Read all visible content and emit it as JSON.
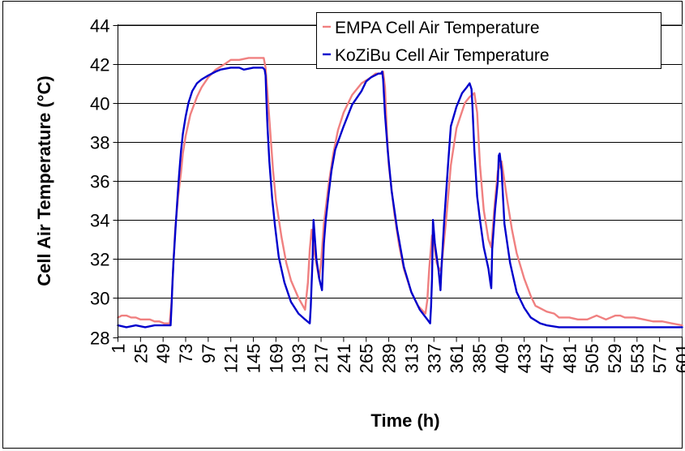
{
  "chart_data": {
    "type": "line",
    "title": "",
    "xlabel": "Time (h)",
    "ylabel": "Cell Air Temperature (°C)",
    "ylim": [
      28,
      44
    ],
    "yticks": [
      28,
      30,
      32,
      34,
      36,
      38,
      40,
      42,
      44
    ],
    "xlim": [
      1,
      601
    ],
    "xticks": [
      1,
      25,
      49,
      73,
      97,
      121,
      145,
      169,
      193,
      217,
      241,
      265,
      289,
      313,
      337,
      361,
      385,
      409,
      433,
      457,
      481,
      505,
      529,
      553,
      577,
      601
    ],
    "grid": "horizontal",
    "legend_position": "top-right",
    "series": [
      {
        "name": "EMPA Cell Air Temperature",
        "color": "#f08080",
        "x": [
          1,
          5,
          10,
          15,
          20,
          25,
          30,
          35,
          40,
          45,
          50,
          56,
          58,
          60,
          62,
          65,
          68,
          70,
          73,
          78,
          85,
          90,
          97,
          105,
          115,
          121,
          130,
          140,
          150,
          156,
          158,
          160,
          163,
          166,
          169,
          175,
          180,
          185,
          193,
          200,
          203,
          205,
          207,
          210,
          213,
          215,
          217,
          220,
          225,
          230,
          235,
          241,
          250,
          260,
          270,
          275,
          280,
          283,
          285,
          287,
          289,
          295,
          300,
          305,
          313,
          320,
          328,
          330,
          332,
          335,
          337,
          340,
          343,
          345,
          350,
          355,
          361,
          370,
          375,
          380,
          383,
          386,
          390,
          395,
          398,
          400,
          402,
          405,
          409,
          415,
          420,
          425,
          433,
          440,
          445,
          457,
          465,
          470,
          481,
          490,
          500,
          505,
          510,
          515,
          520,
          525,
          530,
          535,
          540,
          545,
          550,
          560,
          570,
          580,
          590,
          601
        ],
        "values": [
          29.0,
          29.1,
          29.1,
          29.0,
          29.0,
          28.9,
          28.9,
          28.9,
          28.8,
          28.8,
          28.7,
          28.7,
          29.8,
          31.8,
          33.6,
          35.2,
          36.4,
          37.4,
          38.3,
          39.4,
          40.3,
          40.8,
          41.3,
          41.7,
          42.0,
          42.2,
          42.2,
          42.3,
          42.3,
          42.3,
          41.8,
          40.5,
          38.5,
          36.5,
          35.0,
          33.1,
          31.8,
          30.9,
          30.0,
          29.4,
          30.8,
          32.5,
          33.5,
          32.3,
          31.5,
          31.0,
          31.8,
          33.8,
          35.8,
          37.4,
          38.6,
          39.5,
          40.4,
          41.0,
          41.3,
          41.5,
          41.5,
          41.6,
          40.8,
          38.5,
          36.8,
          34.3,
          32.7,
          31.5,
          30.3,
          29.6,
          29.2,
          29.9,
          31.5,
          33.2,
          32.8,
          31.8,
          31.4,
          31.6,
          34.0,
          36.8,
          38.7,
          40.0,
          40.3,
          40.5,
          39.5,
          36.8,
          34.5,
          33.0,
          32.6,
          33.8,
          35.0,
          36.5,
          37.0,
          35.0,
          33.5,
          32.3,
          31.0,
          30.1,
          29.6,
          29.3,
          29.2,
          29.0,
          29.0,
          28.9,
          28.9,
          29.0,
          29.1,
          29.0,
          28.9,
          29.0,
          29.1,
          29.1,
          29.0,
          29.0,
          29.0,
          28.9,
          28.8,
          28.8,
          28.7,
          28.6
        ]
      },
      {
        "name": "KoZiBu Cell Air Temperature",
        "color": "#0000cc",
        "x": [
          1,
          10,
          20,
          30,
          40,
          50,
          57,
          58,
          59,
          60,
          62,
          64,
          66,
          68,
          70,
          73,
          76,
          80,
          85,
          90,
          97,
          105,
          110,
          121,
          130,
          135,
          145,
          150,
          155,
          157,
          158,
          159,
          160,
          162,
          165,
          168,
          172,
          178,
          185,
          193,
          200,
          205,
          206,
          207,
          208,
          209,
          212,
          215,
          218,
          220,
          222,
          225,
          228,
          232,
          241,
          250,
          260,
          265,
          270,
          278,
          281,
          282,
          283,
          285,
          288,
          292,
          298,
          305,
          313,
          322,
          330,
          333,
          334,
          335,
          336,
          338,
          342,
          344,
          345,
          348,
          352,
          355,
          361,
          367,
          372,
          375,
          377,
          378,
          380,
          383,
          386,
          390,
          395,
          397,
          398,
          399,
          402,
          405,
          406,
          407,
          409,
          412,
          418,
          425,
          433,
          440,
          450,
          457,
          470,
          490,
          510,
          530,
          550,
          570,
          590,
          601
        ],
        "values": [
          28.6,
          28.5,
          28.6,
          28.5,
          28.6,
          28.6,
          28.6,
          29.6,
          30.8,
          31.8,
          33.4,
          34.9,
          36.3,
          37.5,
          38.4,
          39.3,
          40.0,
          40.6,
          41.0,
          41.2,
          41.4,
          41.6,
          41.7,
          41.8,
          41.8,
          41.7,
          41.8,
          41.8,
          41.8,
          41.7,
          41.4,
          40.0,
          38.8,
          37.0,
          35.1,
          33.7,
          32.1,
          30.8,
          29.8,
          29.2,
          28.9,
          28.7,
          29.5,
          30.8,
          32.0,
          34.0,
          32.0,
          31.0,
          30.4,
          32.8,
          34.0,
          35.3,
          36.5,
          37.6,
          38.8,
          39.9,
          40.6,
          41.1,
          41.3,
          41.5,
          41.5,
          41.6,
          41.2,
          39.4,
          37.5,
          35.5,
          33.5,
          31.6,
          30.3,
          29.4,
          28.9,
          28.7,
          29.6,
          31.0,
          34.0,
          32.8,
          31.4,
          30.4,
          31.5,
          34.0,
          36.8,
          38.8,
          39.8,
          40.5,
          40.8,
          41.0,
          40.7,
          39.8,
          37.6,
          35.2,
          34.0,
          32.6,
          31.5,
          30.8,
          30.5,
          32.5,
          34.5,
          36.0,
          37.3,
          37.4,
          36.5,
          33.8,
          31.8,
          30.3,
          29.5,
          29.0,
          28.7,
          28.6,
          28.5,
          28.5,
          28.5,
          28.5,
          28.5,
          28.5,
          28.5,
          28.5
        ]
      }
    ]
  }
}
